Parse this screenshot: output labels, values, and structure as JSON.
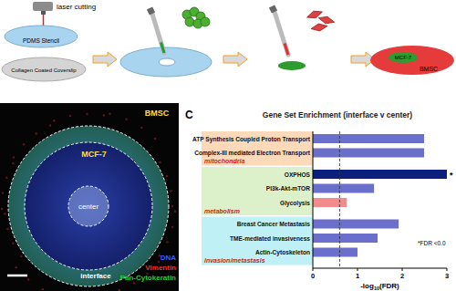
{
  "schematic": {
    "laser_label": "laser cutting",
    "stencil_label": "PDMS Stencil",
    "coverslip_label": "Collagen Coated Coverslip",
    "final_inner_label": "MCF-7",
    "final_outer_label": "BMSC"
  },
  "image": {
    "labels": {
      "bmsc": "BMSC",
      "mcf7": "MCF-7",
      "center": "center",
      "interface": "interface"
    },
    "legend": [
      {
        "name": "DNA",
        "color": "#3b5bff"
      },
      {
        "name": "Vimentin",
        "color": "#ff2a2a"
      },
      {
        "name": "Pan-Cytokeratin",
        "color": "#22cc33"
      }
    ]
  },
  "chart_data": {
    "type": "bar",
    "orientation": "horizontal",
    "panel_label": "C",
    "title": "Gene Set Enrichment (interface v center)",
    "xlabel": "-log10(FDR)",
    "categories": [
      "ATP Synthesis Coupled Proton Transport",
      "Complex-III mediated Electron Transport",
      "OXPHOS",
      "PI3k-Akt-mTOR",
      "Glycolysis",
      "Breast Cancer Metastasis",
      "TME-mediated invasiveness",
      "Actin-Cytoskeleton"
    ],
    "values": [
      2.49,
      2.49,
      3.0,
      1.37,
      0.76,
      1.92,
      1.45,
      1.0
    ],
    "colors": [
      "#6b6fcc",
      "#6b6fcc",
      "#0d1f7c",
      "#6b6fcc",
      "#f28b8b",
      "#6b6fcc",
      "#6b6fcc",
      "#6b6fcc"
    ],
    "groups": [
      {
        "name": "mitochondria",
        "color": "#fcd9b8",
        "categories": [
          "ATP Synthesis Coupled Proton Transport",
          "Complex-III mediated Electron Transport"
        ]
      },
      {
        "name": "metabolism",
        "color": "#dcf1c9",
        "categories": [
          "OXPHOS",
          "PI3k-Akt-mTOR",
          "Glycolysis"
        ]
      },
      {
        "name": "invasion/metastasis",
        "color": "#bff0f5",
        "categories": [
          "Breast Cancer Metastasis",
          "TME-mediated invasiveness",
          "Actin-Cytoskeleton"
        ]
      }
    ],
    "threshold": 0.6,
    "annotations": [
      {
        "text": "*",
        "category": "OXPHOS"
      }
    ],
    "footnote": "*FDR <0.0",
    "xlim": [
      0,
      3
    ],
    "xticks": [
      0,
      1,
      2,
      3
    ],
    "grid": false
  }
}
